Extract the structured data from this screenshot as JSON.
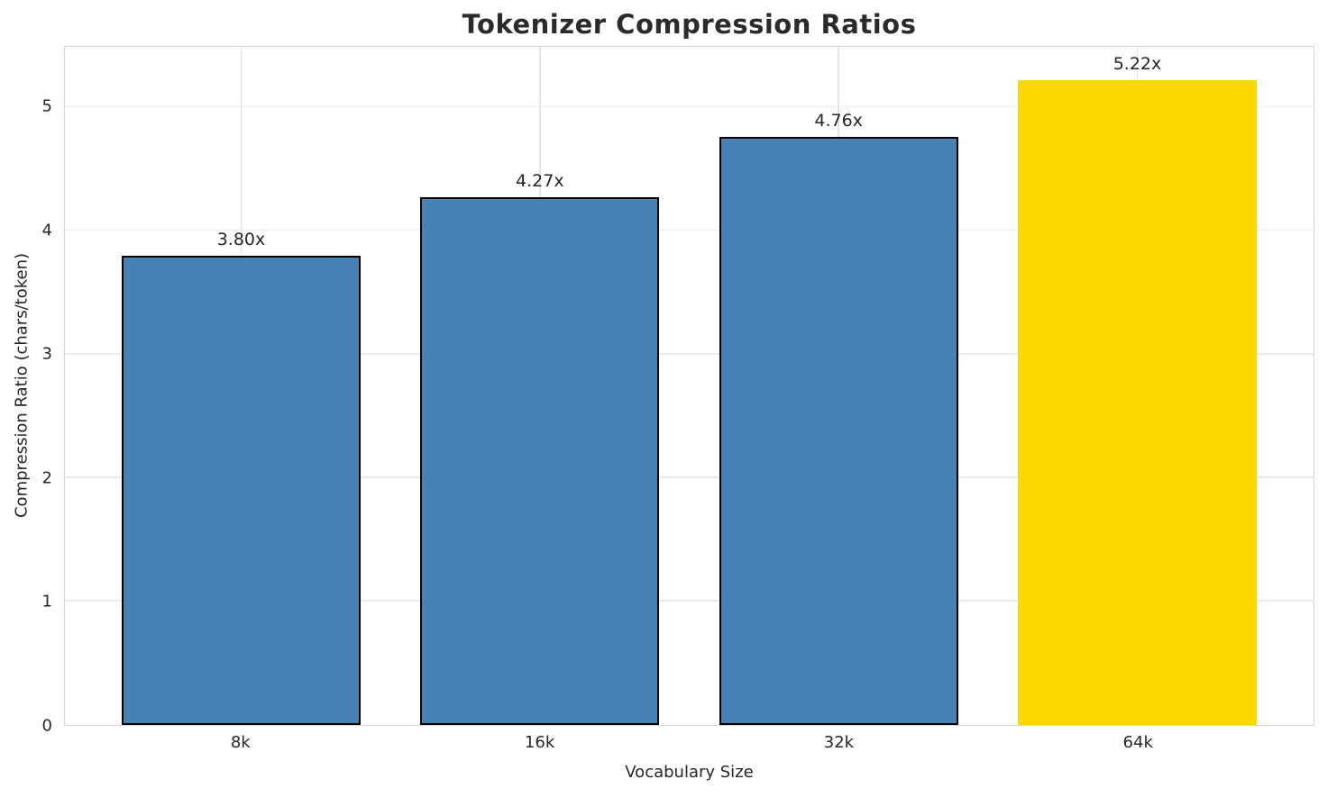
{
  "chart_data": {
    "type": "bar",
    "title": "Tokenizer Compression Ratios",
    "xlabel": "Vocabulary Size",
    "ylabel": "Compression Ratio (chars/token)",
    "categories": [
      "8k",
      "16k",
      "32k",
      "64k"
    ],
    "values": [
      3.8,
      4.27,
      4.76,
      5.22
    ],
    "bar_labels": [
      "3.80x",
      "4.27x",
      "4.76x",
      "5.22x"
    ],
    "bar_colors": [
      "#4682B4",
      "#4682B4",
      "#4682B4",
      "#FFD700"
    ],
    "bar_edge_colors": [
      "#000000",
      "#000000",
      "#000000",
      "none"
    ],
    "bar_color_default": "#4682B4",
    "highlight_color": "#FFD700",
    "ylim": [
      0,
      5.49
    ],
    "yticks": [
      0,
      1,
      2,
      3,
      4,
      5
    ],
    "grid": true,
    "legend": "none",
    "bar_width_fraction": 0.8,
    "x_outer_pad_units": 0.59
  }
}
